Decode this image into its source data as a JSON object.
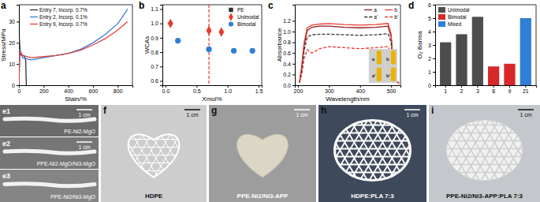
{
  "chart_data": [
    {
      "panel_label": "a",
      "type": "line",
      "x_label": "Stain/%",
      "y_label": "Stress/MPa",
      "xlim": [
        0,
        920
      ],
      "ylim": [
        0,
        38
      ],
      "xticks": [
        0,
        200,
        400,
        600,
        800
      ],
      "yticks": [
        0,
        10,
        20,
        30
      ],
      "legend": "upper left",
      "series": [
        {
          "name": "Entry 7, Incorp. 0.7%",
          "color": "#333333",
          "line_style": "solid",
          "x": [
            0,
            4,
            10,
            20,
            40,
            55,
            60
          ],
          "values": [
            0,
            22,
            16,
            14,
            14,
            12,
            0
          ]
        },
        {
          "name": "Entry 2, Incorp. 0.1%",
          "color": "#3b7ddd",
          "line_style": "solid",
          "x": [
            0,
            8,
            30,
            100,
            200,
            300,
            400,
            500,
            600,
            700,
            800,
            860,
            880
          ],
          "values": [
            0,
            17,
            13,
            12,
            13,
            14,
            15,
            17,
            20,
            24,
            29,
            34,
            36
          ]
        },
        {
          "name": "Entry 9, Incorp. 0.7%",
          "color": "#e0403a",
          "line_style": "solid",
          "x": [
            0,
            8,
            30,
            100,
            200,
            300,
            400,
            500,
            600,
            700,
            800,
            880
          ],
          "values": [
            0,
            16,
            14,
            13,
            13.5,
            14,
            15,
            16.5,
            19,
            22,
            26,
            30
          ]
        }
      ]
    },
    {
      "panel_label": "b",
      "type": "scatter",
      "x_label": "Xmol%",
      "y_label": "WCAs",
      "xlim": [
        -0.05,
        1.55
      ],
      "ylim": [
        0.57,
        1.13
      ],
      "xticks": [
        {
          "value": 0,
          "label": "0.0"
        },
        0.5,
        {
          "value": 1,
          "label": "1.0"
        },
        1.5
      ],
      "yticks": [
        0.6,
        0.7,
        0.8,
        0.9,
        {
          "value": 1,
          "label": "1.0"
        },
        1.1
      ],
      "legend": "upper right",
      "vline": {
        "x": 0.7,
        "color": "#e8392f",
        "line_style": "dashed"
      },
      "series": [
        {
          "name": "PE",
          "color": "#333333",
          "marker": "square",
          "x": [],
          "values": []
        },
        {
          "name": "Unimodal",
          "color": "#e8392f",
          "marker": "diamond",
          "x": [
            0.08,
            0.7,
            0.9
          ],
          "values": [
            1.0,
            0.95,
            0.94
          ]
        },
        {
          "name": "Bimodal",
          "color": "#2f7fd6",
          "marker": "circle",
          "x": [
            0.2,
            0.7,
            1.1,
            1.4
          ],
          "values": [
            0.88,
            0.82,
            0.81,
            0.81
          ]
        }
      ]
    },
    {
      "panel_label": "c",
      "type": "line",
      "x_label": "Wavelength/nm",
      "y_label": "Absorbance",
      "xlim": [
        190,
        530
      ],
      "ylim": [
        0,
        1.5
      ],
      "xticks": [
        200,
        300,
        400,
        500
      ],
      "yticks": [
        {
          "value": 0,
          "label": "0.0"
        },
        0.2,
        0.4,
        0.6,
        0.8,
        {
          "value": 1,
          "label": "1.0"
        },
        1.2
      ],
      "legend": "upper right",
      "inset_labels": [
        "a",
        "b",
        "a'",
        "b'"
      ],
      "series": [
        {
          "name": "a",
          "color": "#8b1a1a",
          "line_style": "solid",
          "x": [
            205,
            212,
            220,
            230,
            245,
            270,
            300,
            350,
            400,
            450,
            490,
            500,
            508,
            515,
            525
          ],
          "values": [
            0.05,
            0.3,
            0.75,
            1.02,
            1.08,
            1.1,
            1.1,
            1.08,
            1.07,
            1.08,
            1.1,
            0.9,
            0.3,
            0.08,
            0.04
          ]
        },
        {
          "name": "b",
          "color": "#e8392f",
          "line_style": "solid",
          "x": [
            205,
            212,
            220,
            230,
            245,
            270,
            300,
            350,
            400,
            450,
            490,
            500,
            508,
            515,
            525
          ],
          "values": [
            0.05,
            0.35,
            0.8,
            1.07,
            1.12,
            1.14,
            1.15,
            1.13,
            1.12,
            1.13,
            1.15,
            0.95,
            0.3,
            0.08,
            0.04
          ]
        },
        {
          "name": "a'",
          "color": "#333333",
          "line_style": "dashed",
          "x": [
            205,
            212,
            220,
            230,
            245,
            270,
            300,
            350,
            400,
            450,
            490,
            500,
            508,
            515,
            525
          ],
          "values": [
            0.05,
            0.25,
            0.65,
            0.9,
            0.94,
            0.95,
            0.95,
            0.94,
            0.93,
            0.94,
            0.96,
            0.8,
            0.25,
            0.07,
            0.03
          ]
        },
        {
          "name": "b'",
          "color": "#e8392f",
          "line_style": "dashed",
          "x": [
            205,
            212,
            220,
            230,
            245,
            270,
            300,
            350,
            400,
            450,
            490,
            500,
            508,
            515,
            525
          ],
          "values": [
            0.05,
            0.2,
            0.5,
            0.66,
            0.6,
            0.68,
            0.72,
            0.7,
            0.68,
            0.7,
            0.72,
            0.6,
            0.2,
            0.06,
            0.03
          ]
        }
      ]
    },
    {
      "panel_label": "d",
      "type": "bar",
      "y_label": "O₂ Barrea",
      "categories": [
        "1",
        "2",
        "3",
        "8",
        "9",
        "21"
      ],
      "ylim": [
        0,
        6
      ],
      "yticks": [
        0,
        1,
        2,
        3,
        4,
        5,
        6
      ],
      "legend": "upper left",
      "series": [
        {
          "name": "Unimodal",
          "color": "#4d4d4d",
          "values": [
            3.2,
            3.8,
            5.1,
            null,
            null,
            null
          ]
        },
        {
          "name": "Bimodal",
          "color": "#d62828",
          "values": [
            null,
            null,
            null,
            1.4,
            1.6,
            null
          ]
        },
        {
          "name": "Mixed",
          "color": "#2f7fd6",
          "values": [
            null,
            null,
            null,
            null,
            null,
            5.0
          ]
        }
      ]
    }
  ],
  "photos": [
    {
      "label": "e1",
      "caption": "PE-Ni2-MgO",
      "scale": "1 cm"
    },
    {
      "label": "e2",
      "caption": "PPE-Ni2-MgO/Ni3-MgO",
      "scale": "1 cm"
    },
    {
      "label": "e3",
      "caption": "PPE-Ni2/Ni3-MgO"
    },
    {
      "label": "f",
      "caption": "HDPE",
      "scale": "1 cm"
    },
    {
      "label": "g",
      "caption": "PPE-Ni2/Ni3-APP",
      "scale": "1 cm"
    },
    {
      "label": "h",
      "caption": "HDPE:PLA 7:3",
      "scale": "1 cm"
    },
    {
      "label": "i",
      "caption": "PPE-Ni2/Ni3-APP:PLA 7:3",
      "scale": "1 cm"
    }
  ]
}
